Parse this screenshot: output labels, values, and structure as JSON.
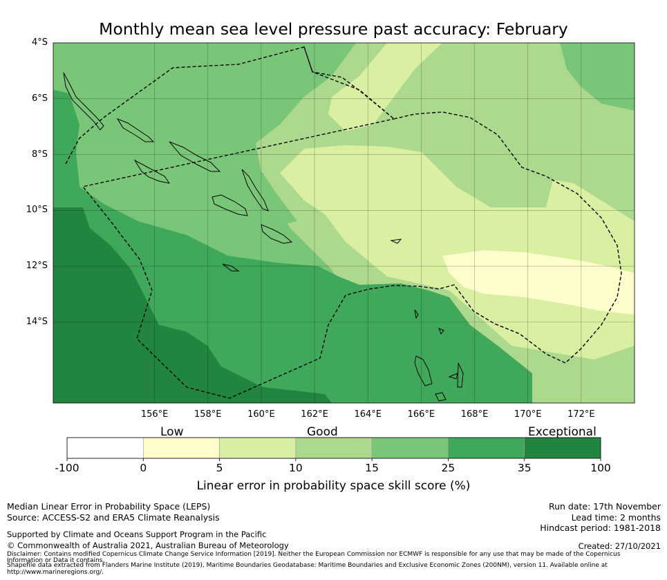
{
  "colors": {
    "exceptional": "#21843f",
    "c25_35": "#3fa85a",
    "c15_25": "#79c679",
    "c10_15": "#add98f",
    "c5_10": "#d9efa2",
    "c0_5": "#fefdcc",
    "below0": "#ffffff"
  },
  "chart_data": {
    "type": "heatmap",
    "title": "Monthly mean sea level pressure past accuracy: February",
    "lon_range": [
      152.2,
      174.0
    ],
    "lat_range": [
      -16.9,
      -4.0
    ],
    "x_ticks": [
      "156°E",
      "158°E",
      "160°E",
      "162°E",
      "164°E",
      "166°E",
      "168°E",
      "170°E",
      "172°E"
    ],
    "x_tick_values": [
      156,
      158,
      160,
      162,
      164,
      166,
      168,
      170,
      172
    ],
    "y_ticks": [
      "4°S",
      "6°S",
      "8°S",
      "10°S",
      "12°S",
      "14°S"
    ],
    "y_tick_values": [
      -4,
      -6,
      -8,
      -10,
      -12,
      -14
    ],
    "colorbar": {
      "label": "Linear error in probability space skill score (%)",
      "tick_labels": [
        "-100",
        "0",
        "5",
        "10",
        "15",
        "25",
        "35",
        "100"
      ],
      "categories": [
        "Low",
        "Good",
        "Exceptional"
      ],
      "bins": [
        "below0",
        "c0_5",
        "c5_10",
        "c10_15",
        "c15_25",
        "c25_35",
        "exceptional"
      ]
    }
  },
  "footer": {
    "method": "Median Linear Error in Probability Space (LEPS)",
    "source": "Source: ACCESS-S2 and ERA5 Climate Reanalysis",
    "supported": "Supported by Climate and Oceans Support Program in the Pacific",
    "copyright": "© Commonwealth of Australia 2021, Australian Bureau of Meteorology",
    "run_date": "Run date: 17th November",
    "lead_time": "Lead time: 2 months",
    "hindcast": "Hindcast period: 1981-2018",
    "created": "Created: 27/10/2021",
    "disclaimer": "Disclaimer: Contains modified Copernicus Climate Change Service Information [2019]. Neither the European Commission nor ECMWF is responsible for any use that may be made of the Copernicus",
    "disclaimer2": "Information or Data it contains.",
    "shapefile": "Shapefile data extracted from Flanders Marine Institute (2019), Maritime Boundaries Geodatabase: Maritime Boundaries and Exclusive Economic Zones (200NM), version 11. Available online at",
    "shapefile2": "http://www.marineregions.org/."
  }
}
